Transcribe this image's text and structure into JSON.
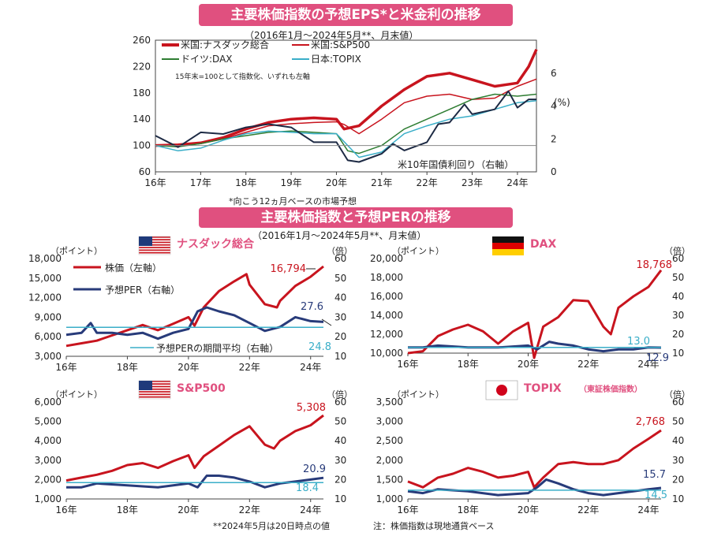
{
  "banner_top": "主要株価指数の予想EPS*と米金利の推移",
  "subtitle_top": "（2016年1月～2024年5月**、月末値）",
  "banner_bottom": "主要株価指数と予想PERの推移",
  "subtitle_bottom": "（2016年1月～2024年5月**、月末値）",
  "footnote_eps": "*向こう12ヵ月ベースの市場予想",
  "footnote_date": "**2024年5月は20日時点の値",
  "footnote_currency": "注：株価指数は現地通貨ベース",
  "colors": {
    "banner": "#e0507f",
    "red": "#c8141e",
    "navy": "#283b7a",
    "green": "#2e7d32",
    "teal": "#3aaec8",
    "dark": "#1d2a44"
  },
  "chart_data": [
    {
      "id": "eps",
      "type": "line",
      "x_ticks": [
        "16年",
        "17年",
        "18年",
        "19年",
        "20年",
        "21年",
        "22年",
        "23年",
        "24年"
      ],
      "y_left": {
        "ticks": [
          60,
          100,
          140,
          180,
          220,
          260
        ],
        "lim": [
          60,
          260
        ]
      },
      "y_right": {
        "ticks": [
          0,
          2,
          4,
          6
        ],
        "lim": [
          0,
          8
        ],
        "unit": "(%)"
      },
      "note": "15年末=100として指数化、いずれも左軸",
      "annotation": "米10年国債利回り（右軸）",
      "x_lim": [
        2016,
        2024.42
      ],
      "series": [
        {
          "name": "米国:ナスダック総合",
          "color": "red",
          "width": 3.5,
          "axis": "left",
          "x": [
            2016,
            2016.5,
            2017,
            2017.5,
            2018,
            2018.5,
            2019,
            2019.5,
            2020,
            2020.17,
            2020.5,
            2021,
            2021.5,
            2022,
            2022.5,
            2023,
            2023.5,
            2024,
            2024.25,
            2024.42
          ],
          "y": [
            100,
            101,
            104,
            112,
            125,
            135,
            140,
            142,
            140,
            125,
            130,
            160,
            185,
            205,
            210,
            200,
            190,
            195,
            220,
            246
          ]
        },
        {
          "name": "米国:S&P500",
          "color": "red",
          "width": 1.5,
          "axis": "left",
          "x": [
            2016,
            2016.5,
            2017,
            2017.5,
            2018,
            2018.5,
            2019,
            2019.5,
            2020,
            2020.17,
            2020.5,
            2021,
            2021.5,
            2022,
            2022.5,
            2023,
            2023.5,
            2024,
            2024.42
          ],
          "y": [
            100,
            100,
            103,
            110,
            120,
            130,
            133,
            135,
            136,
            132,
            118,
            140,
            165,
            175,
            178,
            170,
            172,
            190,
            201
          ]
        },
        {
          "name": "ドイツ:DAX",
          "color": "green",
          "width": 1.5,
          "axis": "left",
          "x": [
            2016,
            2016.5,
            2017,
            2017.5,
            2018,
            2018.5,
            2019,
            2019.5,
            2020,
            2020.25,
            2020.5,
            2021,
            2021.5,
            2022,
            2022.5,
            2023,
            2023.5,
            2024,
            2024.42
          ],
          "y": [
            100,
            98,
            103,
            110,
            115,
            120,
            122,
            120,
            118,
            92,
            88,
            100,
            125,
            140,
            155,
            170,
            178,
            175,
            178
          ]
        },
        {
          "name": "日本:TOPIX",
          "color": "teal",
          "width": 1.5,
          "axis": "left",
          "x": [
            2016,
            2016.5,
            2017,
            2017.5,
            2018,
            2018.5,
            2019,
            2019.5,
            2020,
            2020.5,
            2021,
            2021.5,
            2022,
            2022.5,
            2023,
            2023.5,
            2024,
            2024.42
          ],
          "y": [
            100,
            92,
            96,
            108,
            118,
            122,
            120,
            118,
            118,
            82,
            90,
            118,
            130,
            140,
            145,
            155,
            165,
            168
          ]
        },
        {
          "name": "米10年国債利回り（右軸）",
          "color": "dark",
          "width": 2,
          "axis": "right",
          "x": [
            2016,
            2016.5,
            2017,
            2017.5,
            2018,
            2018.5,
            2019,
            2019.5,
            2020,
            2020.25,
            2020.5,
            2021,
            2021.25,
            2021.5,
            2022,
            2022.25,
            2022.5,
            2022.83,
            2023,
            2023.5,
            2023.8,
            2024,
            2024.25,
            2024.42
          ],
          "y": [
            2.2,
            1.5,
            2.4,
            2.3,
            2.7,
            2.9,
            2.7,
            1.8,
            1.8,
            0.7,
            0.6,
            1.1,
            1.7,
            1.3,
            1.8,
            2.9,
            3.0,
            4.1,
            3.5,
            3.8,
            4.9,
            3.9,
            4.4,
            4.4
          ]
        }
      ]
    },
    {
      "id": "nasdaq",
      "type": "line",
      "title": "ナスダック総合",
      "flag": "us",
      "left_label": "（ポイント）",
      "right_label": "（倍）",
      "x_ticks": [
        "16年",
        "18年",
        "20年",
        "22年",
        "24年"
      ],
      "y_left": {
        "ticks": [
          "3,000",
          "6,000",
          "9,000",
          "12,000",
          "15,000",
          "18,000"
        ],
        "lim": [
          3000,
          18000
        ]
      },
      "y_right": {
        "ticks": [
          10,
          20,
          30,
          40,
          50,
          60
        ],
        "lim": [
          10,
          60
        ]
      },
      "x_lim": [
        2016,
        2024.42
      ],
      "legend": [
        "株価（左軸）",
        "予想PER（右軸）"
      ],
      "avg_label": "予想PERの期間平均（右軸）",
      "callouts": {
        "price": "16,794",
        "per": "27.6",
        "avg": "24.8"
      },
      "series": [
        {
          "name": "株価（左軸）",
          "color": "red",
          "axis": "left",
          "x": [
            2016,
            2016.5,
            2017,
            2017.5,
            2018,
            2018.5,
            2019,
            2019.5,
            2020,
            2020.2,
            2020.5,
            2021,
            2021.5,
            2021.9,
            2022,
            2022.5,
            2022.9,
            2023,
            2023.5,
            2024,
            2024.42
          ],
          "y": [
            4600,
            5000,
            5400,
            6200,
            7000,
            7800,
            7000,
            8000,
            9000,
            7700,
            10500,
            13000,
            14500,
            15600,
            14000,
            11000,
            10500,
            11500,
            13800,
            15200,
            16794
          ]
        },
        {
          "name": "予想PER（右軸）",
          "color": "navy",
          "axis": "right",
          "x": [
            2016,
            2016.5,
            2016.8,
            2017,
            2017.5,
            2018,
            2018.5,
            2019,
            2019.5,
            2020,
            2020.3,
            2020.6,
            2021,
            2021.5,
            2022,
            2022.5,
            2023,
            2023.5,
            2024,
            2024.42
          ],
          "y": [
            21,
            22,
            27,
            22,
            22,
            21,
            22,
            19,
            22,
            24,
            33,
            35,
            33,
            31,
            27,
            23,
            25,
            30,
            28,
            27.6
          ]
        },
        {
          "name": "予想PERの期間平均（右軸）",
          "color": "teal",
          "axis": "right",
          "x": [
            2016,
            2024.42
          ],
          "y": [
            24.8,
            24.8
          ]
        }
      ]
    },
    {
      "id": "dax",
      "type": "line",
      "title": "DAX",
      "flag": "de",
      "left_label": "（ポイント）",
      "right_label": "（倍）",
      "x_ticks": [
        "16年",
        "18年",
        "20年",
        "22年",
        "24年"
      ],
      "y_left": {
        "ticks": [
          "10,000",
          "12,000",
          "14,000",
          "16,000",
          "18,000",
          "20,000"
        ],
        "lim": [
          10000,
          20000
        ]
      },
      "y_right": {
        "ticks": [
          10,
          20,
          30,
          40,
          50,
          60
        ],
        "lim": [
          10,
          60
        ]
      },
      "x_lim": [
        2016,
        2024.42
      ],
      "callouts": {
        "price": "18,768",
        "per": "12.9",
        "avg": "13.0"
      },
      "series": [
        {
          "name": "株価",
          "color": "red",
          "axis": "left",
          "x": [
            2016,
            2016.5,
            2017,
            2017.5,
            2018,
            2018.5,
            2019,
            2019.5,
            2020,
            2020.2,
            2020.5,
            2021,
            2021.5,
            2022,
            2022.5,
            2022.75,
            2023,
            2023.5,
            2024,
            2024.42
          ],
          "y": [
            10000,
            10200,
            11800,
            12500,
            13000,
            12300,
            11000,
            12300,
            13200,
            9500,
            12800,
            13800,
            15600,
            15500,
            12800,
            12000,
            14800,
            16000,
            17000,
            18768
          ]
        },
        {
          "name": "予想PER",
          "color": "navy",
          "axis": "right",
          "x": [
            2016,
            2016.5,
            2017,
            2018,
            2019,
            2020,
            2020.3,
            2020.7,
            2021,
            2021.5,
            2022,
            2022.5,
            2023,
            2023.5,
            2024,
            2024.42
          ],
          "y": [
            13,
            13,
            14,
            13,
            13,
            14,
            12,
            16,
            15,
            14,
            12,
            11,
            12,
            12,
            13,
            12.9
          ]
        },
        {
          "name": "予想PERの期間平均",
          "color": "teal",
          "axis": "right",
          "x": [
            2016,
            2024.42
          ],
          "y": [
            13,
            13
          ]
        }
      ]
    },
    {
      "id": "sp500",
      "type": "line",
      "title": "S&P500",
      "flag": "us",
      "left_label": "（ポイント）",
      "right_label": "（倍）",
      "x_ticks": [
        "16年",
        "18年",
        "20年",
        "22年",
        "24年"
      ],
      "y_left": {
        "ticks": [
          "1,000",
          "2,000",
          "3,000",
          "4,000",
          "5,000",
          "6,000"
        ],
        "lim": [
          1000,
          6000
        ]
      },
      "y_right": {
        "ticks": [
          10,
          20,
          30,
          40,
          50,
          60
        ],
        "lim": [
          10,
          60
        ]
      },
      "x_lim": [
        2016,
        2024.42
      ],
      "callouts": {
        "price": "5,308",
        "per": "20.9",
        "avg": "18.4"
      },
      "series": [
        {
          "name": "株価",
          "color": "red",
          "axis": "left",
          "x": [
            2016,
            2016.5,
            2017,
            2017.5,
            2018,
            2018.5,
            2019,
            2019.5,
            2020,
            2020.2,
            2020.5,
            2021,
            2021.5,
            2022,
            2022.5,
            2022.8,
            2023,
            2023.5,
            2024,
            2024.42
          ],
          "y": [
            1950,
            2100,
            2250,
            2450,
            2750,
            2850,
            2600,
            2950,
            3250,
            2600,
            3200,
            3750,
            4300,
            4750,
            3800,
            3600,
            4000,
            4500,
            4800,
            5308
          ]
        },
        {
          "name": "予想PER",
          "color": "navy",
          "axis": "right",
          "x": [
            2016,
            2016.5,
            2017,
            2018,
            2019,
            2020,
            2020.3,
            2020.6,
            2021,
            2021.5,
            2022,
            2022.5,
            2023,
            2023.5,
            2024,
            2024.42
          ],
          "y": [
            16,
            16,
            18,
            17,
            16,
            18,
            16,
            22,
            22,
            21,
            19,
            16,
            18,
            19,
            20,
            20.9
          ]
        },
        {
          "name": "予想PERの期間平均",
          "color": "teal",
          "axis": "right",
          "x": [
            2016,
            2024.42
          ],
          "y": [
            18.4,
            18.4
          ]
        }
      ]
    },
    {
      "id": "topix",
      "type": "line",
      "title": "TOPIX",
      "title_note": "（東証株価指数）",
      "flag": "jp",
      "left_label": "（ポイント）",
      "right_label": "（倍）",
      "x_ticks": [
        "16年",
        "18年",
        "20年",
        "22年",
        "24年"
      ],
      "y_left": {
        "ticks": [
          "1,000",
          "1,500",
          "2,000",
          "2,500",
          "3,000",
          "3,500"
        ],
        "lim": [
          1000,
          3500
        ]
      },
      "y_right": {
        "ticks": [
          10,
          20,
          30,
          40,
          50,
          60
        ],
        "lim": [
          10,
          60
        ]
      },
      "x_lim": [
        2016,
        2024.42
      ],
      "callouts": {
        "price": "2,768",
        "per": "15.7",
        "avg": "14.5"
      },
      "series": [
        {
          "name": "株価",
          "color": "red",
          "axis": "left",
          "x": [
            2016,
            2016.5,
            2017,
            2017.5,
            2018,
            2018.5,
            2019,
            2019.5,
            2020,
            2020.2,
            2020.5,
            2021,
            2021.5,
            2022,
            2022.5,
            2023,
            2023.5,
            2024,
            2024.42
          ],
          "y": [
            1450,
            1300,
            1550,
            1650,
            1800,
            1700,
            1550,
            1600,
            1700,
            1300,
            1550,
            1900,
            1950,
            1900,
            1900,
            2000,
            2300,
            2550,
            2768
          ]
        },
        {
          "name": "予想PER",
          "color": "navy",
          "axis": "right",
          "x": [
            2016,
            2016.5,
            2017,
            2018,
            2019,
            2020,
            2020.3,
            2020.6,
            2021,
            2021.5,
            2022,
            2022.5,
            2023,
            2023.5,
            2024,
            2024.42
          ],
          "y": [
            14,
            13,
            15,
            14,
            12,
            13,
            16,
            20,
            18,
            15,
            13,
            12,
            13,
            14,
            15,
            15.7
          ]
        },
        {
          "name": "予想PERの期間平均",
          "color": "teal",
          "axis": "right",
          "x": [
            2016,
            2024.42
          ],
          "y": [
            14.5,
            14.5
          ]
        }
      ]
    }
  ]
}
